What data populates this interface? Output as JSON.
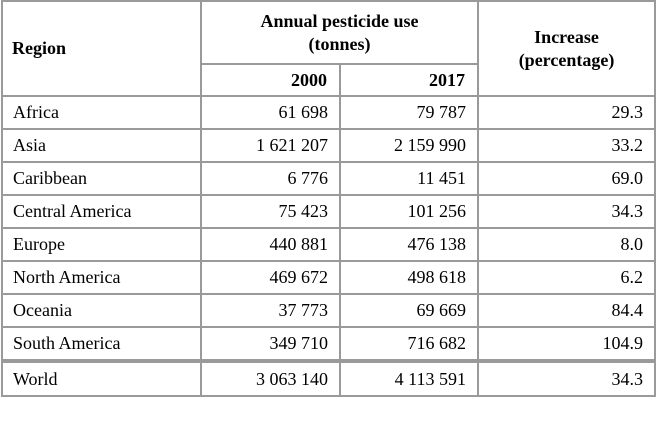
{
  "table": {
    "headers": {
      "region": "Region",
      "annual_use_line1": "Annual pesticide use",
      "annual_use_line2": "(tonnes)",
      "year_a": "2000",
      "year_b": "2017",
      "increase_line1": "Increase",
      "increase_line2": "(percentage)"
    },
    "rows": [
      {
        "region": "Africa",
        "y2000": "61 698",
        "y2017": "79 787",
        "increase": "29.3"
      },
      {
        "region": "Asia",
        "y2000": "1 621 207",
        "y2017": "2 159 990",
        "increase": "33.2"
      },
      {
        "region": "Caribbean",
        "y2000": "6 776",
        "y2017": "11 451",
        "increase": "69.0"
      },
      {
        "region": "Central America",
        "y2000": "75 423",
        "y2017": "101 256",
        "increase": "34.3"
      },
      {
        "region": "Europe",
        "y2000": "440 881",
        "y2017": "476 138",
        "increase": "8.0"
      },
      {
        "region": "North America",
        "y2000": "469 672",
        "y2017": "498 618",
        "increase": "6.2"
      },
      {
        "region": "Oceania",
        "y2000": "37 773",
        "y2017": "69 669",
        "increase": "84.4"
      },
      {
        "region": "South America",
        "y2000": "349 710",
        "y2017": "716 682",
        "increase": "104.9"
      }
    ],
    "total": {
      "region": "World",
      "y2000": "3 063 140",
      "y2017": "4 113 591",
      "increase": "34.3"
    }
  }
}
